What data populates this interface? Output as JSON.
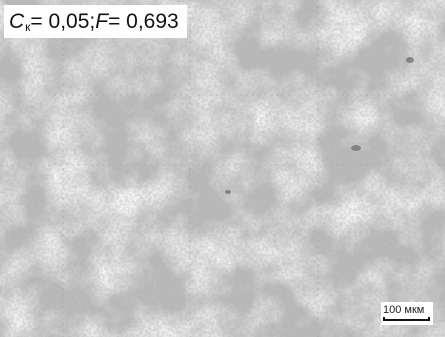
{
  "caption": {
    "c_symbol": "C",
    "c_subscript": "к",
    "c_value": " = 0,05; ",
    "f_symbol": "F",
    "f_value": " = 0,693"
  },
  "scale_bar": {
    "label": "100 мкм"
  },
  "colors": {
    "background_gray": "#b8b8b8",
    "grain_light": "#f1f1f1",
    "boundary_dark": "#8a8a8a"
  }
}
